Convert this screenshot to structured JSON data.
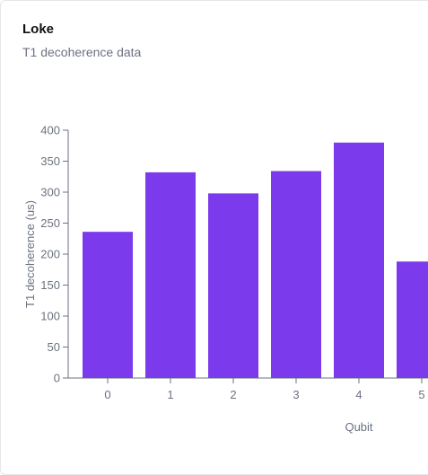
{
  "card": {
    "title": "Loke",
    "subtitle": "T1 decoherence data"
  },
  "colors": {
    "bar": "#7c3aed",
    "axis": "#6b7280",
    "text": "#6b7280"
  },
  "chart_data": {
    "type": "bar",
    "categories": [
      "0",
      "1",
      "2",
      "3",
      "4",
      "5"
    ],
    "values": [
      236,
      332,
      298,
      334,
      380,
      188
    ],
    "xlabel": "Qubit",
    "ylabel": "T1 decoherence (us)",
    "ylim": [
      0,
      400
    ],
    "yticks": [
      0,
      50,
      100,
      150,
      200,
      250,
      300,
      350,
      400
    ],
    "grid": false,
    "legend": "none"
  }
}
